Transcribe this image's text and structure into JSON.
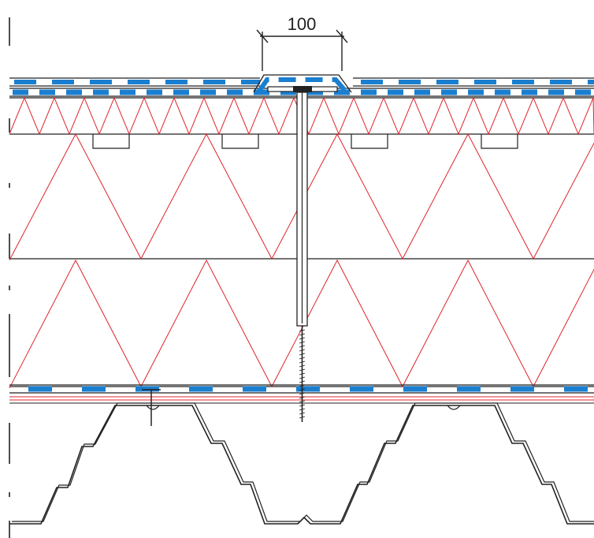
{
  "dimension": {
    "label": "100"
  },
  "colors": {
    "line": "#222222",
    "insulation": "#e0242c",
    "membrane": "#1b7fd0",
    "background": "#ffffff"
  }
}
